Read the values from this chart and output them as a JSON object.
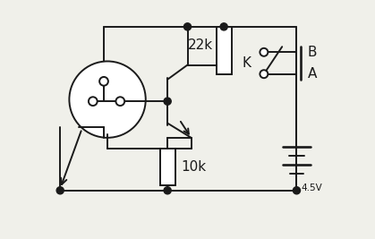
{
  "bg_color": "#f0f0ea",
  "line_color": "#1a1a1a",
  "line_width": 1.4,
  "resistor_22k_label": "22k",
  "resistor_10k_label": "10k",
  "battery_label": "4.5V",
  "label_K": "K",
  "label_B": "B",
  "label_A": "A",
  "figsize": [
    4.19,
    2.67
  ],
  "dpi": 100
}
